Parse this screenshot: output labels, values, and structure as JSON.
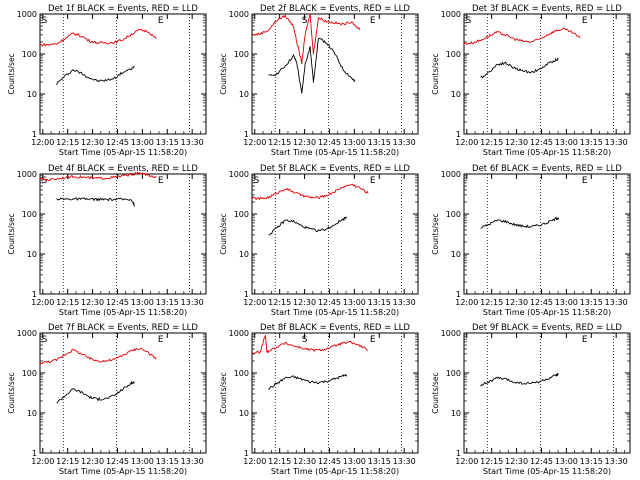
{
  "figure": {
    "background": "#ffffff"
  },
  "common": {
    "xlabel": "Start Time (05-Apr-15 11:58:20)",
    "ylabel": "Counts/sec",
    "x_ticks": [
      "12:00",
      "12:15",
      "12:30",
      "12:45",
      "13:00",
      "13:15",
      "13:30"
    ],
    "y_ticks": [
      "1",
      "10",
      "100",
      "1000"
    ],
    "xlim_minutes": [
      0,
      100
    ],
    "ylim": [
      1,
      1000
    ],
    "yscale": "log",
    "event_color": "#000000",
    "lld_color": "#e00000",
    "marker_s": "S",
    "marker_e": "E",
    "grid": false
  },
  "chart_data": [
    {
      "type": "line",
      "title": "Det 1f BLACK = Events, RED = LLD",
      "vlines": [
        14,
        46,
        90
      ],
      "s_marker": 1,
      "e_marker": 71,
      "x": [
        0,
        5,
        10,
        15,
        20,
        25,
        30,
        35,
        40,
        45,
        50,
        55,
        60,
        65,
        70,
        75,
        80,
        85,
        90,
        95,
        100
      ],
      "series": [
        {
          "name": "BLACK = Events",
          "points": [
            [
              10,
              18
            ],
            [
              15,
              28
            ],
            [
              20,
              40
            ],
            [
              25,
              33
            ],
            [
              30,
              25
            ],
            [
              35,
              21
            ],
            [
              40,
              22
            ],
            [
              45,
              25
            ],
            [
              50,
              35
            ],
            [
              55,
              42
            ],
            [
              57,
              48
            ]
          ]
        },
        {
          "name": "RED = LLD",
          "points": [
            [
              0,
              170
            ],
            [
              5,
              170
            ],
            [
              10,
              180
            ],
            [
              15,
              240
            ],
            [
              20,
              330
            ],
            [
              25,
              280
            ],
            [
              30,
              210
            ],
            [
              35,
              190
            ],
            [
              40,
              190
            ],
            [
              45,
              195
            ],
            [
              50,
              230
            ],
            [
              55,
              310
            ],
            [
              60,
              400
            ],
            [
              65,
              370
            ],
            [
              70,
              240
            ]
          ]
        }
      ]
    },
    {
      "type": "line",
      "title": "Det 2f BLACK = Events, RED = LLD",
      "vlines": [
        14,
        46,
        90
      ],
      "s_marker": 30,
      "e_marker": 71,
      "x": [
        0,
        100
      ],
      "series": [
        {
          "name": "BLACK = Events",
          "points": [
            [
              10,
              28
            ],
            [
              15,
              32
            ],
            [
              20,
              50
            ],
            [
              25,
              90
            ],
            [
              27,
              60
            ],
            [
              30,
              10
            ],
            [
              32,
              55
            ],
            [
              35,
              150
            ],
            [
              37,
              20
            ],
            [
              40,
              250
            ],
            [
              45,
              190
            ],
            [
              50,
              100
            ],
            [
              55,
              40
            ],
            [
              60,
              25
            ],
            [
              62,
              20
            ]
          ]
        },
        {
          "name": "RED = LLD",
          "points": [
            [
              0,
              300
            ],
            [
              5,
              320
            ],
            [
              10,
              400
            ],
            [
              15,
              700
            ],
            [
              20,
              900
            ],
            [
              25,
              500
            ],
            [
              27,
              200
            ],
            [
              30,
              60
            ],
            [
              32,
              300
            ],
            [
              35,
              1000
            ],
            [
              37,
              100
            ],
            [
              40,
              800
            ],
            [
              45,
              650
            ],
            [
              50,
              600
            ],
            [
              55,
              550
            ],
            [
              60,
              650
            ],
            [
              65,
              400
            ]
          ]
        }
      ]
    },
    {
      "type": "line",
      "title": "Det 3f BLACK = Events, RED = LLD",
      "vlines": [
        14,
        46,
        90
      ],
      "s_marker": 1,
      "e_marker": 71,
      "x": [
        0,
        100
      ],
      "series": [
        {
          "name": "BLACK = Events",
          "points": [
            [
              10,
              25
            ],
            [
              15,
              35
            ],
            [
              20,
              55
            ],
            [
              25,
              60
            ],
            [
              30,
              45
            ],
            [
              35,
              38
            ],
            [
              40,
              35
            ],
            [
              45,
              40
            ],
            [
              50,
              55
            ],
            [
              55,
              70
            ],
            [
              57,
              75
            ]
          ]
        },
        {
          "name": "RED = LLD",
          "points": [
            [
              0,
              180
            ],
            [
              5,
              190
            ],
            [
              10,
              220
            ],
            [
              15,
              280
            ],
            [
              20,
              350
            ],
            [
              25,
              300
            ],
            [
              30,
              240
            ],
            [
              35,
              210
            ],
            [
              40,
              200
            ],
            [
              45,
              230
            ],
            [
              50,
              300
            ],
            [
              55,
              380
            ],
            [
              60,
              420
            ],
            [
              65,
              350
            ],
            [
              70,
              250
            ]
          ]
        }
      ]
    },
    {
      "type": "line",
      "title": "Det 4f BLACK = Events, RED = LLD",
      "vlines": [
        14,
        46,
        90
      ],
      "s_marker": 1,
      "e_marker": 71,
      "x": [
        0,
        100
      ],
      "series": [
        {
          "name": "BLACK = Events",
          "points": [
            [
              10,
              240
            ],
            [
              15,
              235
            ],
            [
              20,
              238
            ],
            [
              25,
              236
            ],
            [
              30,
              234
            ],
            [
              35,
              232
            ],
            [
              40,
              230
            ],
            [
              45,
              232
            ],
            [
              50,
              233
            ],
            [
              55,
              235
            ],
            [
              57,
              160
            ]
          ]
        },
        {
          "name": "RED = LLD",
          "points": [
            [
              0,
              750
            ],
            [
              5,
              720
            ],
            [
              10,
              760
            ],
            [
              15,
              820
            ],
            [
              20,
              860
            ],
            [
              25,
              840
            ],
            [
              30,
              800
            ],
            [
              35,
              780
            ],
            [
              40,
              790
            ],
            [
              45,
              830
            ],
            [
              50,
              900
            ],
            [
              55,
              980
            ],
            [
              60,
              1050
            ],
            [
              65,
              950
            ],
            [
              70,
              800
            ]
          ]
        }
      ]
    },
    {
      "type": "line",
      "title": "Det 5f BLACK = Events, RED = LLD",
      "vlines": [
        14,
        46,
        90
      ],
      "s_marker": 1,
      "e_marker": 71,
      "x": [
        0,
        100
      ],
      "series": [
        {
          "name": "BLACK = Events",
          "points": [
            [
              10,
              30
            ],
            [
              15,
              45
            ],
            [
              20,
              70
            ],
            [
              25,
              65
            ],
            [
              30,
              50
            ],
            [
              35,
              42
            ],
            [
              40,
              38
            ],
            [
              45,
              42
            ],
            [
              50,
              55
            ],
            [
              55,
              75
            ],
            [
              57,
              85
            ]
          ]
        },
        {
          "name": "RED = LLD",
          "points": [
            [
              0,
              250
            ],
            [
              5,
              240
            ],
            [
              10,
              260
            ],
            [
              15,
              330
            ],
            [
              20,
              430
            ],
            [
              25,
              360
            ],
            [
              30,
              290
            ],
            [
              35,
              260
            ],
            [
              40,
              255
            ],
            [
              45,
              290
            ],
            [
              50,
              370
            ],
            [
              55,
              480
            ],
            [
              60,
              550
            ],
            [
              65,
              450
            ],
            [
              70,
              330
            ]
          ]
        }
      ]
    },
    {
      "type": "line",
      "title": "Det 6f BLACK = Events, RED = LLD",
      "vlines": [
        14,
        46,
        90
      ],
      "s_marker": null,
      "e_marker": 71,
      "x": [
        0,
        100
      ],
      "series": [
        {
          "name": "BLACK = Events",
          "points": [
            [
              10,
              45
            ],
            [
              15,
              55
            ],
            [
              20,
              70
            ],
            [
              25,
              65
            ],
            [
              30,
              55
            ],
            [
              35,
              50
            ],
            [
              40,
              48
            ],
            [
              45,
              52
            ],
            [
              50,
              60
            ],
            [
              55,
              75
            ],
            [
              57,
              80
            ]
          ]
        }
      ]
    },
    {
      "type": "line",
      "title": "Det 7f BLACK = Events, RED = LLD",
      "vlines": [
        14,
        46,
        90
      ],
      "s_marker": 1,
      "e_marker": 71,
      "x": [
        0,
        100
      ],
      "series": [
        {
          "name": "BLACK = Events",
          "points": [
            [
              10,
              18
            ],
            [
              15,
              27
            ],
            [
              20,
              40
            ],
            [
              25,
              33
            ],
            [
              30,
              25
            ],
            [
              35,
              22
            ],
            [
              40,
              23
            ],
            [
              45,
              28
            ],
            [
              50,
              40
            ],
            [
              55,
              55
            ],
            [
              57,
              60
            ]
          ]
        },
        {
          "name": "RED = LLD",
          "points": [
            [
              0,
              180
            ],
            [
              5,
              190
            ],
            [
              10,
              210
            ],
            [
              15,
              290
            ],
            [
              20,
              380
            ],
            [
              25,
              300
            ],
            [
              30,
              230
            ],
            [
              35,
              200
            ],
            [
              40,
              200
            ],
            [
              45,
              220
            ],
            [
              50,
              280
            ],
            [
              55,
              360
            ],
            [
              60,
              420
            ],
            [
              65,
              330
            ],
            [
              70,
              220
            ]
          ]
        }
      ]
    },
    {
      "type": "line",
      "title": "Det 8f BLACK = Events, RED = LLD",
      "vlines": [
        14,
        46,
        90
      ],
      "s_marker": 30,
      "e_marker": 71,
      "x": [
        0,
        100
      ],
      "series": [
        {
          "name": "BLACK = Events",
          "points": [
            [
              10,
              40
            ],
            [
              15,
              55
            ],
            [
              20,
              75
            ],
            [
              25,
              80
            ],
            [
              30,
              70
            ],
            [
              35,
              60
            ],
            [
              40,
              58
            ],
            [
              45,
              62
            ],
            [
              50,
              72
            ],
            [
              55,
              85
            ],
            [
              57,
              90
            ]
          ]
        },
        {
          "name": "RED = LLD",
          "points": [
            [
              0,
              320
            ],
            [
              5,
              330
            ],
            [
              8,
              900
            ],
            [
              9,
              340
            ],
            [
              10,
              350
            ],
            [
              15,
              450
            ],
            [
              20,
              560
            ],
            [
              25,
              480
            ],
            [
              30,
              420
            ],
            [
              35,
              380
            ],
            [
              40,
              370
            ],
            [
              45,
              400
            ],
            [
              50,
              480
            ],
            [
              55,
              560
            ],
            [
              60,
              580
            ],
            [
              65,
              480
            ],
            [
              70,
              380
            ]
          ]
        }
      ]
    },
    {
      "type": "line",
      "title": "Det 9f BLACK = Events, RED = LLD",
      "vlines": [
        14,
        46,
        90
      ],
      "s_marker": null,
      "e_marker": 71,
      "x": [
        0,
        100
      ],
      "series": [
        {
          "name": "BLACK = Events",
          "points": [
            [
              10,
              50
            ],
            [
              15,
              60
            ],
            [
              20,
              75
            ],
            [
              25,
              70
            ],
            [
              30,
              60
            ],
            [
              35,
              55
            ],
            [
              40,
              55
            ],
            [
              45,
              60
            ],
            [
              50,
              70
            ],
            [
              55,
              85
            ],
            [
              57,
              95
            ]
          ]
        }
      ]
    }
  ]
}
